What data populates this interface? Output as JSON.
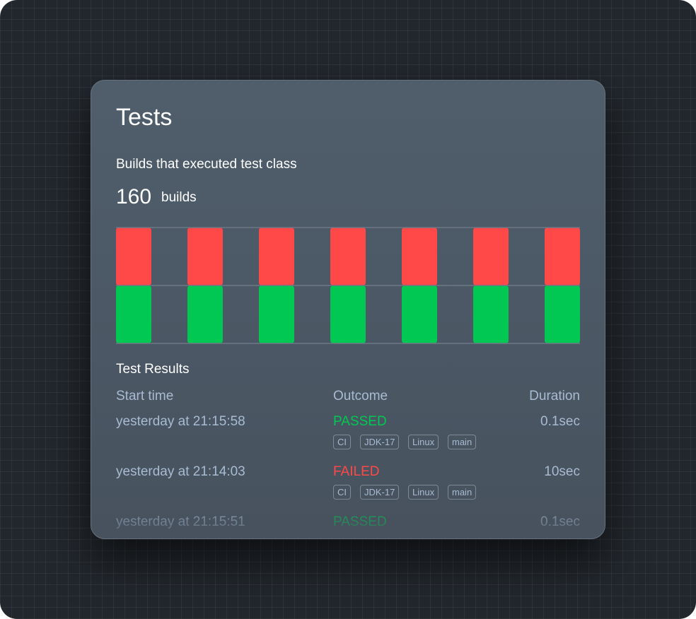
{
  "header": {
    "title": "Tests"
  },
  "builds": {
    "label": "Builds that executed test class",
    "count": 160,
    "unit": "builds"
  },
  "chart_data": {
    "type": "bar",
    "stacked": true,
    "series": [
      {
        "color": "#00c853",
        "values": [
          50,
          50,
          50,
          50,
          50,
          50,
          50
        ]
      },
      {
        "color": "#ff4848",
        "values": [
          50,
          50,
          50,
          50,
          50,
          50,
          50
        ]
      }
    ],
    "ylim": [
      0,
      100
    ],
    "gridlines": [
      0,
      50,
      100
    ]
  },
  "results": {
    "title": "Test Results",
    "columns": [
      "Start time",
      "Outcome",
      "Duration"
    ],
    "rows": [
      {
        "start": "yesterday at 21:15:58",
        "outcome": "PASSED",
        "outcome_color": "#00c853",
        "duration": "0.1sec",
        "tags": [
          "CI",
          "JDK-17",
          "Linux",
          "main"
        ]
      },
      {
        "start": "yesterday at 21:14:03",
        "outcome": "FAILED",
        "outcome_color": "#ff4848",
        "duration": "10sec",
        "tags": [
          "CI",
          "JDK-17",
          "Linux",
          "main"
        ]
      },
      {
        "start": "yesterday at 21:15:51",
        "outcome": "PASSED",
        "outcome_color": "#00c853",
        "duration": "0.1sec",
        "tags": []
      }
    ]
  }
}
